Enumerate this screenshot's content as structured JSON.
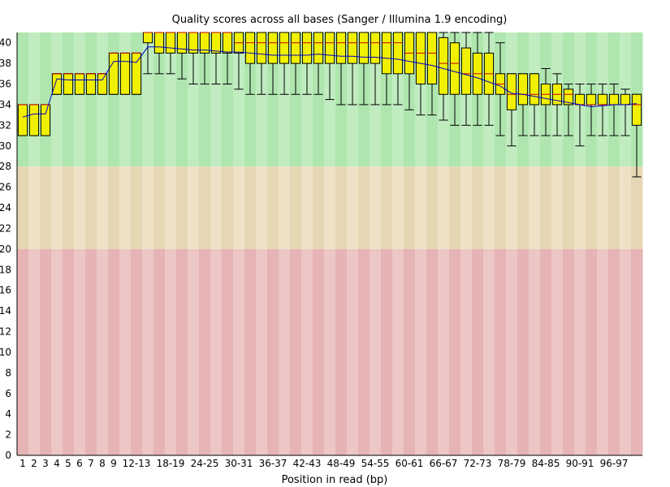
{
  "chart_data": {
    "type": "boxplot",
    "title": "Quality scores across all bases (Sanger / Illumina 1.9 encoding)",
    "xlabel": "Position in read (bp)",
    "ylabel": "",
    "ylim": [
      0,
      41
    ],
    "yticks": [
      0,
      2,
      4,
      6,
      8,
      10,
      12,
      14,
      16,
      18,
      20,
      22,
      24,
      26,
      28,
      30,
      32,
      34,
      36,
      38,
      40
    ],
    "quality_zones": [
      {
        "name": "good",
        "from": 28,
        "to": 41,
        "color": "#afe6af",
        "stripe": "#c0ecc0"
      },
      {
        "name": "reasonable",
        "from": 20,
        "to": 28,
        "color": "#e6d7b4",
        "stripe": "#ede2c6"
      },
      {
        "name": "poor",
        "from": 0,
        "to": 20,
        "color": "#e6b4b4",
        "stripe": "#edc6c6"
      }
    ],
    "colors": {
      "box": "#f0f000",
      "median": "#c80000",
      "mean": "#0000c8",
      "whisker": "#000000"
    },
    "categories": [
      "1",
      "2",
      "3",
      "4",
      "5",
      "6",
      "7",
      "8",
      "9",
      "10-11",
      "12-13",
      "14-15",
      "16-17",
      "18-19",
      "20-21",
      "22-23",
      "24-25",
      "26-27",
      "28-29",
      "30-31",
      "32-33",
      "34-35",
      "36-37",
      "38-39",
      "40-41",
      "42-43",
      "44-45",
      "46-47",
      "48-49",
      "50-51",
      "52-53",
      "54-55",
      "56-57",
      "58-59",
      "60-61",
      "62-63",
      "64-65",
      "66-67",
      "68-69",
      "70-71",
      "72-73",
      "74-75",
      "76-77",
      "78-79",
      "80-81",
      "82-83",
      "84-85",
      "86-87",
      "88-89",
      "90-91",
      "92-93",
      "94-95",
      "96-97",
      "98-99",
      "100-101"
    ],
    "x_tick_labels": [
      "1",
      "2",
      "3",
      "4",
      "5",
      "6",
      "7",
      "8",
      "9",
      "12-13",
      "18-19",
      "24-25",
      "30-31",
      "36-37",
      "42-43",
      "48-49",
      "54-55",
      "60-61",
      "66-67",
      "72-73",
      "78-79",
      "84-85",
      "90-91",
      "96-97"
    ],
    "series": [
      {
        "name": "median",
        "values": [
          34,
          34,
          34,
          37,
          37,
          37,
          37,
          37,
          39,
          39,
          39,
          41,
          41,
          41,
          41,
          41,
          41,
          41,
          41,
          40,
          40,
          40,
          40,
          40,
          40,
          40,
          40,
          40,
          40,
          40,
          40,
          40,
          40,
          40,
          39,
          39,
          39,
          38,
          38,
          37,
          37,
          37,
          36,
          35,
          35,
          35,
          35,
          35,
          35,
          34,
          34,
          34,
          34,
          34,
          34
        ]
      },
      {
        "name": "q1",
        "values": [
          31,
          31,
          31,
          35,
          35,
          35,
          35,
          35,
          35,
          35,
          35,
          40,
          39,
          39,
          39,
          39,
          39,
          39,
          39,
          39,
          38,
          38,
          38,
          38,
          38,
          38,
          38,
          38,
          38,
          38,
          38,
          38,
          37,
          37,
          37,
          36,
          36,
          35,
          35,
          35,
          35,
          35,
          35,
          33.5,
          34,
          34,
          34,
          34,
          34,
          34,
          34,
          34,
          34,
          34,
          32
        ]
      },
      {
        "name": "q3",
        "values": [
          34,
          34,
          34,
          37,
          37,
          37,
          37,
          37,
          39,
          39,
          39,
          41,
          41,
          41,
          41,
          41,
          41,
          41,
          41,
          41,
          41,
          41,
          41,
          41,
          41,
          41,
          41,
          41,
          41,
          41,
          41,
          41,
          41,
          41,
          41,
          41,
          41,
          40.5,
          40,
          39.5,
          39,
          39,
          37,
          37,
          37,
          37,
          36,
          36,
          35.5,
          35,
          35,
          35,
          35,
          35,
          35
        ]
      },
      {
        "name": "whisker_low",
        "values": [
          31,
          31,
          31,
          35,
          35,
          35,
          35,
          35,
          35,
          35,
          35,
          37,
          37,
          37,
          36.5,
          36,
          36,
          36,
          36,
          35.5,
          35,
          35,
          35,
          35,
          35,
          35,
          35,
          34.5,
          34,
          34,
          34,
          34,
          34,
          34,
          33.5,
          33,
          33,
          32.5,
          32,
          32,
          32,
          32,
          31,
          30,
          31,
          31,
          31,
          31,
          31,
          30,
          31,
          31,
          31,
          31,
          27
        ]
      },
      {
        "name": "whisker_high",
        "values": [
          34,
          34,
          34,
          37,
          37,
          37,
          37,
          37,
          39,
          39,
          39,
          41,
          41,
          41,
          41,
          41,
          41,
          41,
          41,
          41,
          41,
          41,
          41,
          41,
          41,
          41,
          41,
          41,
          41,
          41,
          41,
          41,
          41,
          41,
          41,
          41,
          41,
          41,
          41,
          41,
          41,
          41,
          40,
          37,
          37,
          37,
          37.5,
          37,
          36,
          36,
          36,
          36,
          36,
          35.5,
          35
        ]
      },
      {
        "name": "mean",
        "values": [
          32.8,
          33.1,
          33.1,
          36.5,
          36.4,
          36.4,
          36.4,
          36.4,
          38.2,
          38.2,
          38.1,
          39.6,
          39.6,
          39.5,
          39.4,
          39.3,
          39.3,
          39.2,
          39.1,
          39.1,
          39.0,
          38.9,
          38.8,
          38.8,
          38.8,
          38.8,
          38.9,
          38.8,
          38.7,
          38.7,
          38.6,
          38.6,
          38.5,
          38.4,
          38.2,
          38.0,
          37.8,
          37.5,
          37.2,
          36.9,
          36.6,
          36.2,
          35.8,
          35.1,
          35.0,
          34.8,
          34.6,
          34.4,
          34.2,
          34.0,
          33.8,
          33.9,
          34.0,
          34.0,
          34.1
        ]
      }
    ]
  }
}
